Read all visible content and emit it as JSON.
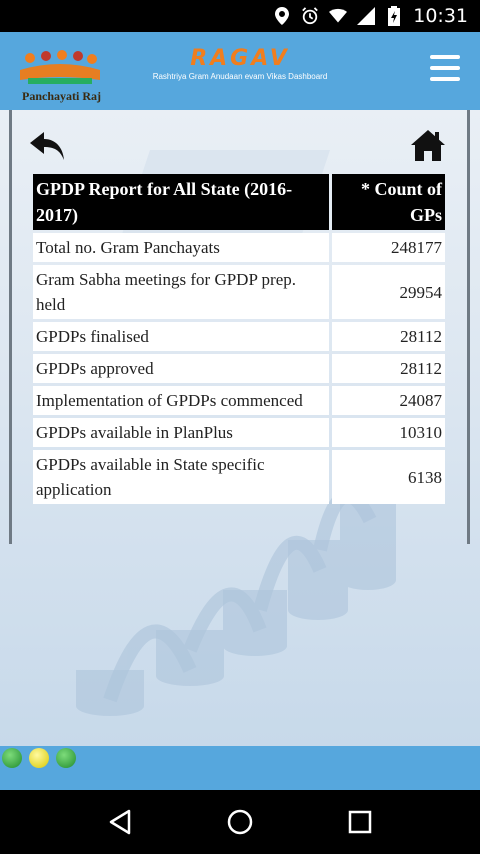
{
  "status_bar": {
    "time": "10:31",
    "icons": [
      "location-icon",
      "alarm-icon",
      "wifi-icon",
      "signal-icon",
      "battery-icon"
    ]
  },
  "header": {
    "logo_text": "Panchayati Raj",
    "brand_title": "RAGAV",
    "brand_subtitle": "Rashtriya Gram Anudaan evam Vikas Dashboard",
    "menu_icon": "hamburger-menu-icon",
    "colors": {
      "header_bg": "#56a7dd",
      "brand": "#f07e1e"
    }
  },
  "toolbar": {
    "back_icon": "back-arrow-icon",
    "home_icon": "home-icon"
  },
  "report": {
    "columns": [
      "GPDP Report for All State (2016-2017)",
      "* Count of GPs"
    ],
    "rows": [
      {
        "label": "Total no. Gram Panchayats",
        "value": "248177"
      },
      {
        "label": "Gram Sabha meetings for GPDP prep. held",
        "value": "29954"
      },
      {
        "label": "GPDPs finalised",
        "value": "28112"
      },
      {
        "label": "GPDPs approved",
        "value": "28112"
      },
      {
        "label": "Implementation of GPDPs commenced",
        "value": "24087"
      },
      {
        "label": "GPDPs available in PlanPlus",
        "value": "10310"
      },
      {
        "label": "GPDPs available in State specific application",
        "value": "6138"
      }
    ]
  },
  "footer": {
    "dots": [
      "#3aa84a",
      "#f2e82a",
      "#3aa84a"
    ]
  },
  "android_nav": {
    "buttons": [
      "back-triangle-icon",
      "home-circle-icon",
      "recents-square-icon"
    ]
  }
}
